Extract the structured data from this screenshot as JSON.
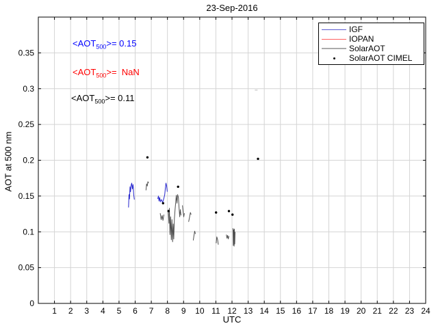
{
  "title": "23-Sep-2016",
  "annotations": [
    {
      "pre": "<AOT",
      "sub": "500",
      "post": ">= 0.15",
      "color": "#0000ff"
    },
    {
      "pre": "<AOT",
      "sub": "500",
      "post": ">=  NaN",
      "color": "#ff0000"
    },
    {
      "pre": "<AOT",
      "sub": "500",
      "post": ">= 0.11",
      "color": "#000000"
    }
  ],
  "legend": {
    "position": "top-right",
    "entries": [
      {
        "label": "IGF",
        "swatch": "line",
        "color": "#5a5ad2",
        "thickness": 1
      },
      {
        "label": "IOPAN",
        "swatch": "line",
        "color": "#ff5f5f",
        "thickness": 1
      },
      {
        "label": "SolarAOT",
        "swatch": "line",
        "color": "#ababab",
        "thickness": 2
      },
      {
        "label": "SolarAOT CIMEL",
        "swatch": "dot",
        "color": "#000000"
      }
    ]
  },
  "chart_data": {
    "type": "line",
    "title": "23-Sep-2016",
    "xlabel": "UTC",
    "ylabel": "AOT at 500 nm",
    "xlim": [
      0,
      24
    ],
    "ylim": [
      0,
      0.4
    ],
    "x_ticks": [
      1,
      2,
      3,
      4,
      5,
      6,
      7,
      8,
      9,
      10,
      11,
      12,
      13,
      14,
      15,
      16,
      17,
      18,
      19,
      20,
      21,
      22,
      23,
      24
    ],
    "y_ticks": [
      {
        "v": 0,
        "label": "0"
      },
      {
        "v": 0.05,
        "label": "0.05"
      },
      {
        "v": 0.1,
        "label": "0.1"
      },
      {
        "v": 0.15,
        "label": "0.15"
      },
      {
        "v": 0.2,
        "label": "0.2"
      },
      {
        "v": 0.25,
        "label": "0.25"
      },
      {
        "v": 0.3,
        "label": "0.3"
      },
      {
        "v": 0.35,
        "label": "0.35"
      }
    ],
    "grid": true,
    "grid_color": "#d4d4d4",
    "series": [
      {
        "id": "igf",
        "name": "IGF",
        "type": "line",
        "color": "#2323cd",
        "mean_aot500": "0.15",
        "segments": [
          [
            [
              5.59,
              0.134
            ],
            [
              5.62,
              0.152
            ],
            [
              5.65,
              0.146
            ],
            [
              5.68,
              0.163
            ],
            [
              5.71,
              0.156
            ],
            [
              5.75,
              0.165
            ],
            [
              5.79,
              0.168
            ],
            [
              5.83,
              0.16
            ],
            [
              5.87,
              0.166
            ],
            [
              5.91,
              0.152
            ],
            [
              5.95,
              0.145
            ]
          ],
          [
            [
              7.4,
              0.146
            ],
            [
              7.44,
              0.15
            ],
            [
              7.48,
              0.143
            ],
            [
              7.52,
              0.148
            ],
            [
              7.56,
              0.142
            ],
            [
              7.62,
              0.145
            ],
            [
              7.7,
              0.141
            ],
            [
              7.78,
              0.147
            ],
            [
              7.83,
              0.152
            ],
            [
              7.87,
              0.161
            ],
            [
              7.91,
              0.168
            ],
            [
              7.95,
              0.164
            ],
            [
              7.99,
              0.156
            ]
          ]
        ]
      },
      {
        "id": "iopan",
        "name": "IOPAN",
        "type": "line",
        "color": "#ff0000",
        "mean_aot500": "NaN",
        "segments": []
      },
      {
        "id": "solaraot",
        "name": "SolarAOT",
        "type": "line",
        "color": "#4f4f4f",
        "mean_aot500": "0.11",
        "segments": [
          [
            [
              6.67,
              0.158
            ],
            [
              6.71,
              0.167
            ],
            [
              6.75,
              0.164
            ],
            [
              6.79,
              0.17
            ],
            [
              6.83,
              0.168
            ]
          ],
          [
            [
              7.55,
              0.126
            ],
            [
              7.61,
              0.117
            ],
            [
              7.67,
              0.123
            ],
            [
              7.72,
              0.116
            ],
            [
              7.78,
              0.124
            ]
          ],
          [
            [
              8.05,
              0.131
            ],
            [
              8.09,
              0.112
            ],
            [
              8.12,
              0.133
            ],
            [
              8.16,
              0.096
            ],
            [
              8.2,
              0.121
            ],
            [
              8.24,
              0.089
            ],
            [
              8.28,
              0.117
            ],
            [
              8.32,
              0.086
            ],
            [
              8.36,
              0.111
            ],
            [
              8.39,
              0.09
            ],
            [
              8.43,
              0.118
            ],
            [
              8.47,
              0.131
            ],
            [
              8.51,
              0.141
            ],
            [
              8.55,
              0.151
            ],
            [
              8.59,
              0.14
            ],
            [
              8.63,
              0.152
            ],
            [
              8.68,
              0.148
            ],
            [
              8.72,
              0.134
            ],
            [
              8.76,
              0.121
            ],
            [
              8.8,
              0.131
            ],
            [
              8.84,
              0.123
            ]
          ],
          [
            [
              8.93,
              0.137
            ],
            [
              8.97,
              0.128
            ],
            [
              9.01,
              0.121
            ],
            [
              9.05,
              0.126
            ]
          ],
          [
            [
              9.31,
              0.114
            ],
            [
              9.36,
              0.119
            ],
            [
              9.42,
              0.127
            ],
            [
              9.47,
              0.124
            ]
          ],
          [
            [
              9.6,
              0.088
            ],
            [
              9.64,
              0.094
            ],
            [
              9.69,
              0.101
            ],
            [
              9.73,
              0.097
            ]
          ],
          [
            [
              11.02,
              0.084
            ],
            [
              11.06,
              0.093
            ],
            [
              11.11,
              0.089
            ],
            [
              11.15,
              0.082
            ]
          ],
          [
            [
              11.65,
              0.096
            ],
            [
              11.69,
              0.091
            ],
            [
              11.73,
              0.095
            ],
            [
              11.77,
              0.09
            ],
            [
              11.81,
              0.094
            ]
          ],
          [
            [
              12.06,
              0.105
            ],
            [
              12.08,
              0.081
            ],
            [
              12.1,
              0.103
            ],
            [
              12.13,
              0.08
            ],
            [
              12.15,
              0.104
            ],
            [
              12.17,
              0.083
            ],
            [
              12.19,
              0.1
            ]
          ]
        ]
      },
      {
        "id": "cimel",
        "name": "SolarAOT CIMEL",
        "type": "scatter",
        "color": "#000000",
        "points": [
          [
            6.76,
            0.204
          ],
          [
            7.73,
            0.14
          ],
          [
            8.07,
            0.129
          ],
          [
            8.66,
            0.163
          ],
          [
            11.01,
            0.127
          ],
          [
            11.81,
            0.129
          ],
          [
            12.03,
            0.124
          ],
          [
            13.61,
            0.202
          ]
        ]
      }
    ],
    "faint_mark": {
      "x": 13.5,
      "y": 0.298
    }
  }
}
